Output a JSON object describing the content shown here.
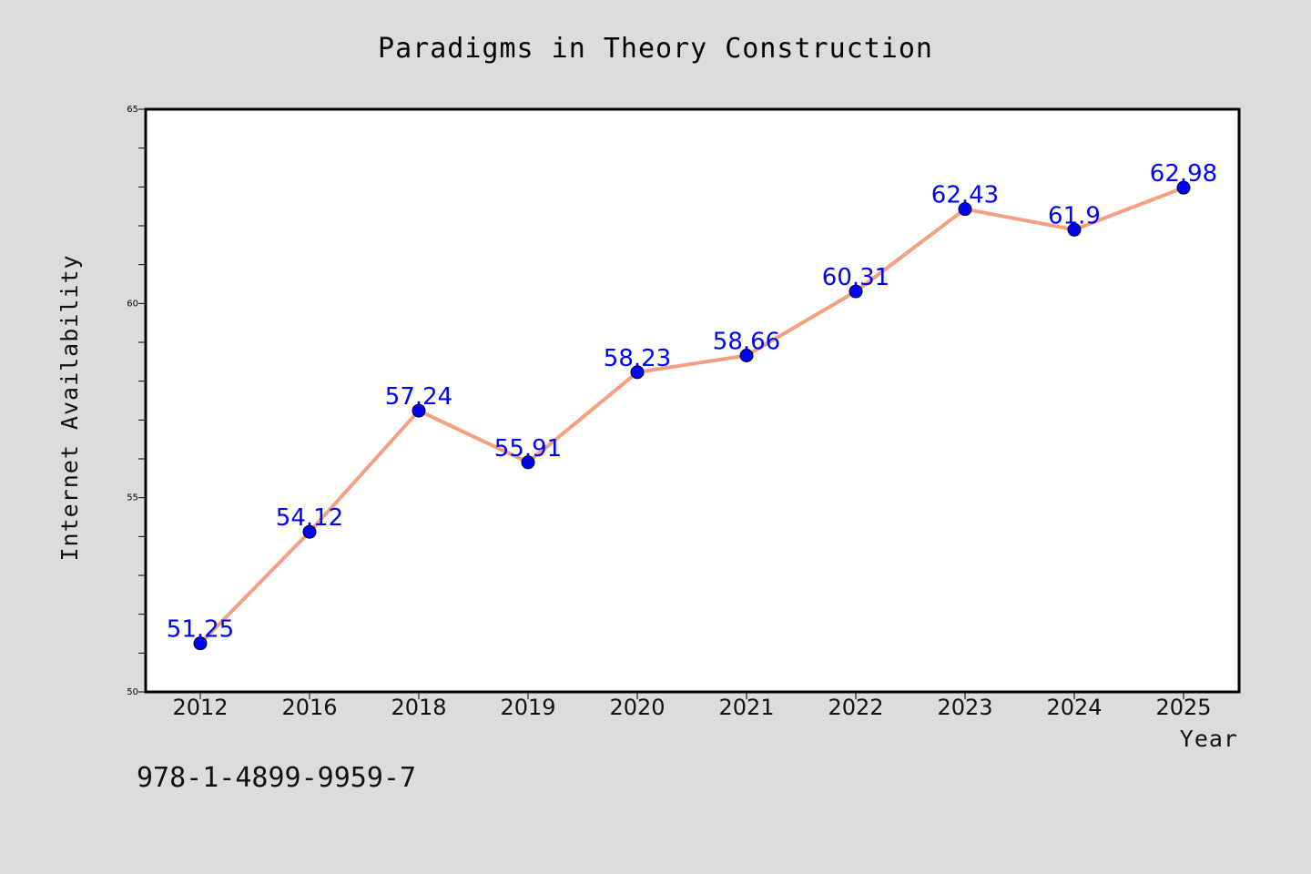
{
  "chart_data": {
    "type": "line",
    "title": "Paradigms in Theory Construction",
    "xlabel": "Year",
    "ylabel": "Internet Availability",
    "categories": [
      "2012",
      "2016",
      "2018",
      "2019",
      "2020",
      "2021",
      "2022",
      "2023",
      "2024",
      "2025"
    ],
    "series": [
      {
        "values": [
          51.25,
          54.12,
          57.24,
          55.91,
          58.23,
          58.66,
          60.31,
          62.43,
          61.9,
          62.98
        ],
        "labels": [
          "51.25",
          "54.12",
          "57.24",
          "55.91",
          "58.23",
          "58.66",
          "60.31",
          "62.43",
          "61.9",
          "62.98"
        ]
      }
    ],
    "ylim": [
      50,
      65
    ],
    "yticks": [
      "50",
      "55",
      "60",
      "65"
    ],
    "grid": false,
    "legend": "none",
    "colors": {
      "line": "#f4a07f",
      "marker": "#0000ff",
      "data_label": "#0000ff",
      "background": "#dcdcdc",
      "plot_area": "#ffffff"
    }
  },
  "footer": {
    "isbn": "978-1-4899-9959-7"
  }
}
